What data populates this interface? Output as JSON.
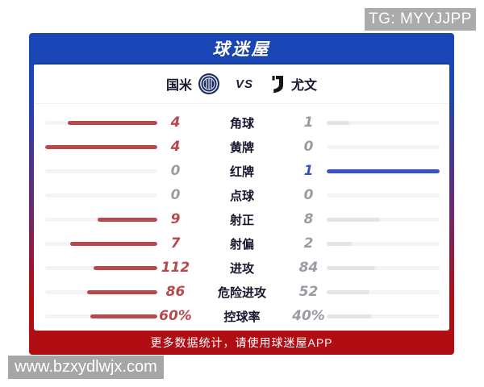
{
  "tg_badge": {
    "text": "TG: MYYJJPP"
  },
  "watermark": {
    "text": "www.bzxydlwjx.com"
  },
  "header": {
    "title": "球迷屋"
  },
  "match": {
    "home_name": "国米",
    "away_name": "尤文",
    "vs_label": "VS",
    "home_logo": "inter-crest-icon",
    "away_logo": "juventus-crest-icon"
  },
  "footer": {
    "text": "更多数据统计，请使用球迷屋APP"
  },
  "stats": [
    {
      "label": "角球",
      "home": {
        "text": "4",
        "value": 4
      },
      "away": {
        "text": "1",
        "value": 1
      }
    },
    {
      "label": "黄牌",
      "home": {
        "text": "4",
        "value": 4
      },
      "away": {
        "text": "0",
        "value": 0
      }
    },
    {
      "label": "红牌",
      "home": {
        "text": "0",
        "value": 0
      },
      "away": {
        "text": "1",
        "value": 1
      }
    },
    {
      "label": "点球",
      "home": {
        "text": "0",
        "value": 0
      },
      "away": {
        "text": "0",
        "value": 0
      }
    },
    {
      "label": "射正",
      "home": {
        "text": "9",
        "value": 9
      },
      "away": {
        "text": "8",
        "value": 8
      }
    },
    {
      "label": "射偏",
      "home": {
        "text": "7",
        "value": 7
      },
      "away": {
        "text": "2",
        "value": 2
      }
    },
    {
      "label": "进攻",
      "home": {
        "text": "112",
        "value": 112
      },
      "away": {
        "text": "84",
        "value": 84
      }
    },
    {
      "label": "危险进攻",
      "home": {
        "text": "86",
        "value": 86
      },
      "away": {
        "text": "52",
        "value": 52
      }
    },
    {
      "label": "控球率",
      "home": {
        "text": "60%",
        "value": 60
      },
      "away": {
        "text": "40%",
        "value": 40
      }
    }
  ],
  "colors": {
    "home_accent": "#b5494e",
    "away_accent": "#3a53c4",
    "neutral_value": "#9b9ba3",
    "gray_bar": "#e4e4e8",
    "track": "#f4f4f6",
    "header_blue": "#1a46b5",
    "footer_red": "#b10e14",
    "badge_gray": "#a6a6a6"
  }
}
